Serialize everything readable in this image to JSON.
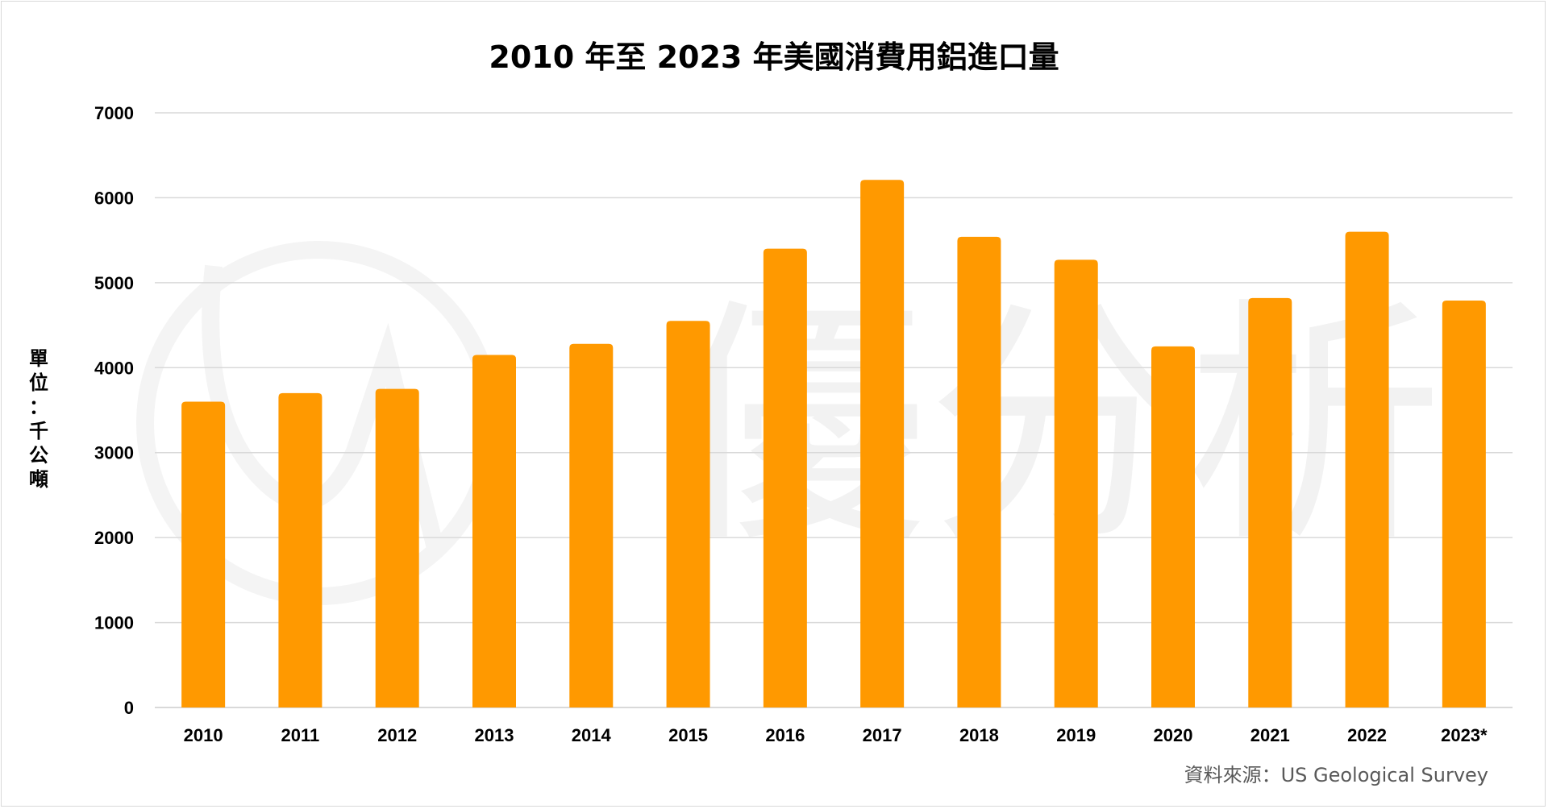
{
  "chart_data": {
    "type": "bar",
    "title": "2010 年至 2023 年美國消費用鋁進口量",
    "ylabel": "單位：千公噸",
    "xlabel": "",
    "categories": [
      "2010",
      "2011",
      "2012",
      "2013",
      "2014",
      "2015",
      "2016",
      "2017",
      "2018",
      "2019",
      "2020",
      "2021",
      "2022",
      "2023*"
    ],
    "values": [
      3600,
      3700,
      3750,
      4150,
      4280,
      4550,
      5400,
      6210,
      5540,
      5270,
      4250,
      4820,
      5600,
      4790
    ],
    "ylim": [
      0,
      7000
    ],
    "yticks": [
      "0",
      "1000",
      "2000",
      "3000",
      "4000",
      "5000",
      "6000",
      "7000"
    ],
    "grid": true,
    "bar_color": "#FF9900",
    "grid_color": "#d9d9d9",
    "source": "資料來源：US Geological Survey"
  },
  "watermark": {
    "text": "優分析",
    "color": "#f2f2f2"
  }
}
